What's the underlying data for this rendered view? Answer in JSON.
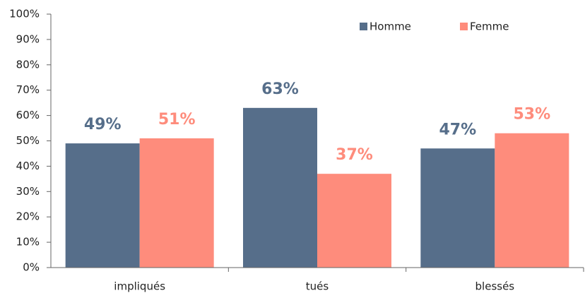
{
  "chart_data": {
    "type": "bar",
    "categories": [
      "impliqués",
      "tués",
      "blessés"
    ],
    "series": [
      {
        "name": "Homme",
        "color": "#566e8a",
        "values": [
          49,
          63,
          47
        ],
        "value_labels": [
          "49%",
          "63%",
          "47%"
        ]
      },
      {
        "name": "Femme",
        "color": "#fe8c7c",
        "values": [
          51,
          37,
          53
        ],
        "value_labels": [
          "51%",
          "37%",
          "53%"
        ]
      }
    ],
    "ylim": [
      0,
      100
    ],
    "yticks": [
      {
        "value": 0,
        "label": "0%"
      },
      {
        "value": 10,
        "label": "10%"
      },
      {
        "value": 20,
        "label": "20%"
      },
      {
        "value": 30,
        "label": "30%"
      },
      {
        "value": 40,
        "label": "40%"
      },
      {
        "value": 50,
        "label": "50%"
      },
      {
        "value": 60,
        "label": "60%"
      },
      {
        "value": 70,
        "label": "70%"
      },
      {
        "value": 80,
        "label": "80%"
      },
      {
        "value": 90,
        "label": "90%"
      },
      {
        "value": 100,
        "label": "100%"
      }
    ],
    "grid": false,
    "legend": "top-right"
  }
}
